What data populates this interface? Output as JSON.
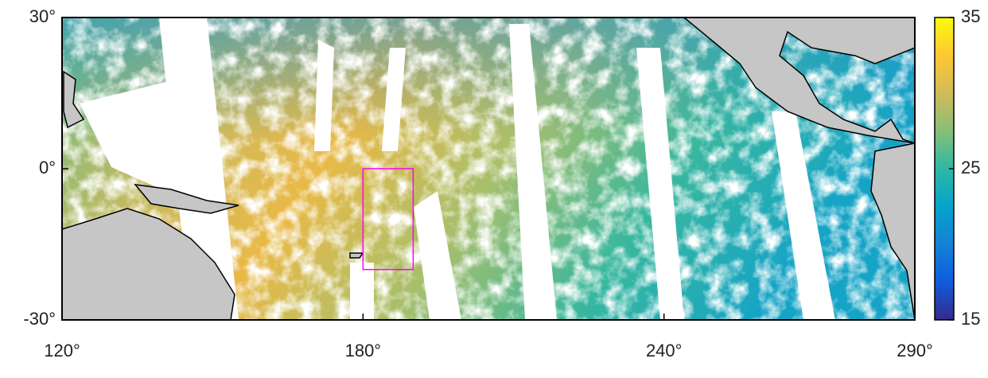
{
  "chart_data": {
    "type": "map",
    "xlim": [
      120,
      290
    ],
    "ylim": [
      -30,
      30
    ],
    "xticks": [
      {
        "value": 120,
        "label": "120°"
      },
      {
        "value": 180,
        "label": "180°"
      },
      {
        "value": 240,
        "label": "240°"
      },
      {
        "value": 290,
        "label": "290°"
      }
    ],
    "yticks": [
      {
        "value": 30,
        "label": "30°"
      },
      {
        "value": 0,
        "label": "0°"
      },
      {
        "value": -30,
        "label": "-30°"
      }
    ],
    "colorbar": {
      "ylim": [
        15,
        35
      ],
      "yticks": [
        15,
        25,
        35
      ],
      "colormap": [
        "#352a87",
        "#0f5cdd",
        "#1481d6",
        "#06a4ca",
        "#2eb7a4",
        "#87bf77",
        "#d1bb59",
        "#fec832",
        "#f9fb0e"
      ]
    },
    "region": {
      "color": "#ff00ff",
      "x": [
        180,
        190
      ],
      "y": [
        -20,
        0
      ]
    }
  }
}
